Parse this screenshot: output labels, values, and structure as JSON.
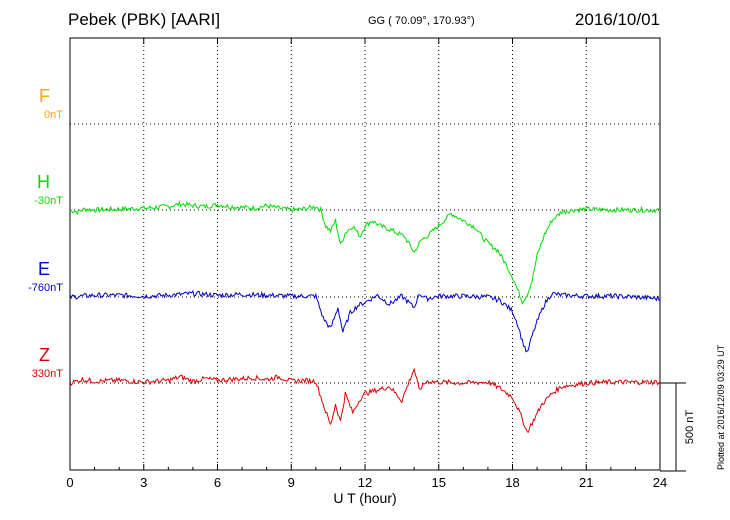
{
  "header": {
    "station": "Pebek (PBK)  [AARI]",
    "coords": "GG ( 70.09°, 170.93°)",
    "date": "2016/10/01"
  },
  "footer": {
    "plotted": "Plotted at 2016/12/09 03:29 UT",
    "scale_label": "500 nT"
  },
  "colors": {
    "F": "#ffa500",
    "H": "#00dd00",
    "E": "#0000cc",
    "Z": "#dd0000"
  },
  "chart_data": {
    "type": "line",
    "xlabel": "U T (hour)",
    "xlim": [
      0,
      24
    ],
    "xticks": [
      0,
      3,
      6,
      9,
      12,
      15,
      18,
      21,
      24
    ],
    "grid": true,
    "scale_bar_nT": 500,
    "series": [
      {
        "name": "F",
        "offset_label": "0nT",
        "values": [],
        "x": []
      },
      {
        "name": "H",
        "offset_label": "-30nT",
        "x": [
          0,
          0.3,
          0.6,
          1,
          2,
          3,
          3.5,
          4,
          4.5,
          5,
          5.5,
          6,
          6.5,
          7,
          7.5,
          8,
          8.5,
          9,
          9.5,
          10,
          10.2,
          10.4,
          10.6,
          10.8,
          11,
          11.2,
          11.5,
          11.8,
          12,
          12.3,
          12.6,
          13,
          13.3,
          13.6,
          14,
          14.3,
          14.6,
          15,
          15.5,
          16,
          16.5,
          16.8,
          17.1,
          17.4,
          17.7,
          18,
          18.2,
          18.4,
          18.6,
          18.8,
          19,
          19.3,
          19.6,
          20,
          20.5,
          21,
          22,
          23,
          24
        ],
        "values": [
          0,
          -10,
          5,
          0,
          5,
          10,
          15,
          20,
          35,
          25,
          20,
          30,
          20,
          15,
          10,
          25,
          10,
          0,
          5,
          20,
          0,
          -90,
          -120,
          -60,
          -200,
          -130,
          -90,
          -150,
          -90,
          -60,
          -90,
          -110,
          -130,
          -150,
          -240,
          -170,
          -140,
          -90,
          -20,
          -60,
          -100,
          -160,
          -200,
          -230,
          -300,
          -380,
          -450,
          -520,
          -480,
          -400,
          -260,
          -140,
          -60,
          -10,
          0,
          5,
          0,
          0,
          0
        ]
      },
      {
        "name": "E",
        "offset_label": "-760nT",
        "x": [
          0,
          1,
          2,
          3,
          4,
          5,
          6,
          7,
          8,
          9,
          10,
          10.3,
          10.6,
          10.9,
          11.1,
          11.4,
          11.7,
          12,
          12.5,
          13,
          13.5,
          14,
          14.2,
          14.5,
          15,
          16,
          17,
          17.5,
          18,
          18.2,
          18.4,
          18.6,
          18.8,
          19,
          19.3,
          19.6,
          20,
          21,
          22,
          23,
          24
        ],
        "values": [
          0,
          10,
          10,
          5,
          10,
          20,
          10,
          15,
          10,
          5,
          5,
          -120,
          -180,
          -60,
          -200,
          -90,
          -50,
          -30,
          10,
          -40,
          5,
          -60,
          20,
          -10,
          5,
          5,
          0,
          -20,
          -80,
          -150,
          -250,
          -320,
          -220,
          -140,
          -40,
          20,
          10,
          5,
          5,
          0,
          -10
        ]
      },
      {
        "name": "Z",
        "offset_label": "330nT",
        "x": [
          0,
          0.5,
          1,
          2,
          3,
          4,
          4.5,
          5,
          5.5,
          6,
          7,
          7.5,
          8,
          8.5,
          9,
          9.5,
          10,
          10.3,
          10.6,
          10.8,
          11,
          11.2,
          11.5,
          11.8,
          12,
          12.5,
          13,
          13.5,
          13.8,
          14,
          14.2,
          14.5,
          15,
          16,
          17,
          17.5,
          18,
          18.3,
          18.6,
          18.9,
          19.2,
          19.6,
          20,
          21,
          22,
          23,
          24
        ],
        "values": [
          0,
          20,
          10,
          15,
          5,
          15,
          35,
          10,
          25,
          15,
          25,
          30,
          20,
          35,
          10,
          15,
          10,
          -120,
          -240,
          -120,
          -220,
          -60,
          -170,
          -90,
          -60,
          -40,
          -20,
          -100,
          10,
          80,
          -40,
          10,
          5,
          0,
          5,
          -30,
          -80,
          -170,
          -280,
          -200,
          -120,
          -60,
          -20,
          0,
          5,
          5,
          5
        ]
      }
    ]
  }
}
